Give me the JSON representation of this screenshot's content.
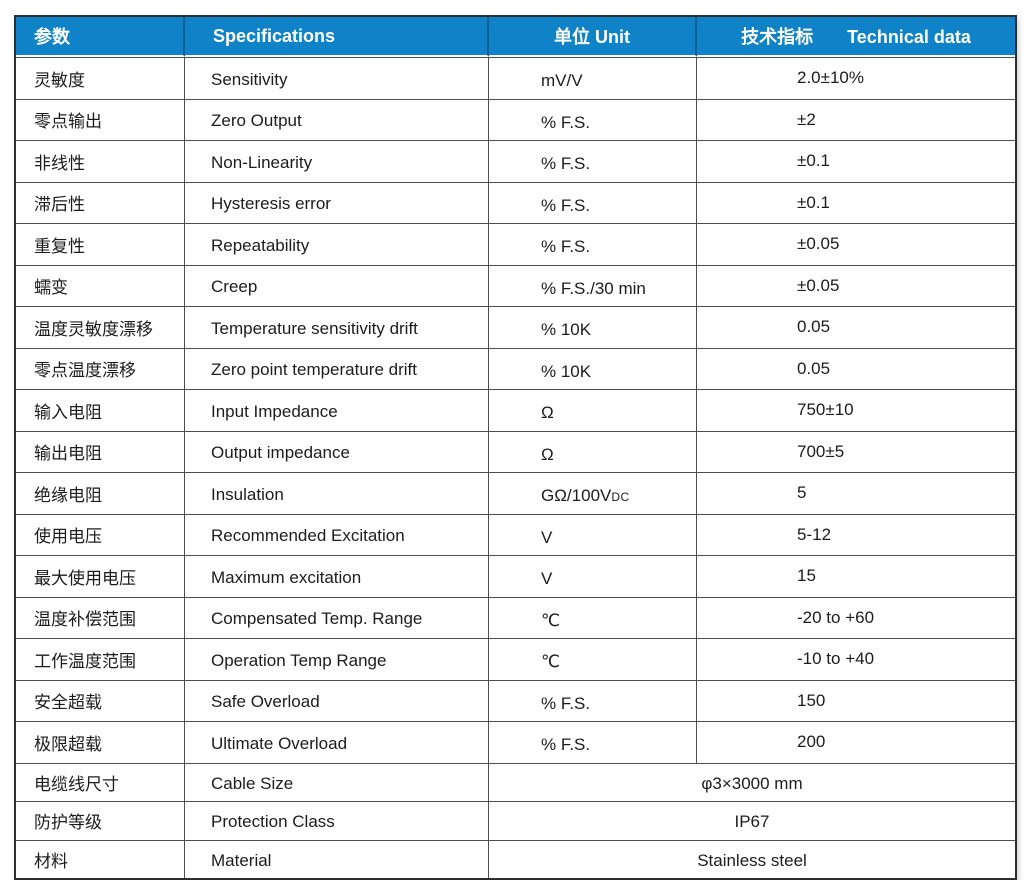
{
  "colors": {
    "header_background": "#0F82C8",
    "header_text": "#FFFFFF",
    "header_separator": "#0C5F93",
    "grid_border": "#4F4F4F",
    "body_text": "#1C1C1C",
    "page_background": "#FFFFFF"
  },
  "table": {
    "headers": {
      "col1": "参数",
      "col2": "Specifications",
      "col3": "单位 Unit",
      "col4_zh": "技术指标",
      "col4_en": "Technical data"
    },
    "rows": [
      {
        "param_zh": "灵敏度",
        "spec_en": "Sensitivity",
        "unit": "mV/V",
        "value": "2.0±10%"
      },
      {
        "param_zh": "零点输出",
        "spec_en": "Zero Output",
        "unit": "% F.S.",
        "value": "±2"
      },
      {
        "param_zh": "非线性",
        "spec_en": "Non-Linearity",
        "unit": "% F.S.",
        "value": "±0.1"
      },
      {
        "param_zh": "滞后性",
        "spec_en": "Hysteresis error",
        "unit": "% F.S.",
        "value": "±0.1"
      },
      {
        "param_zh": "重复性",
        "spec_en": "Repeatability",
        "unit": "% F.S.",
        "value": "±0.05"
      },
      {
        "param_zh": "蠕变",
        "spec_en": "Creep",
        "unit": "% F.S./30 min",
        "value": "±0.05"
      },
      {
        "param_zh": "温度灵敏度漂移",
        "spec_en": "Temperature sensitivity drift",
        "unit": "% 10K",
        "value": "0.05"
      },
      {
        "param_zh": "零点温度漂移",
        "spec_en": "Zero point temperature drift",
        "unit": "% 10K",
        "value": "0.05"
      },
      {
        "param_zh": "输入电阻",
        "spec_en": "Input Impedance",
        "unit": "Ω",
        "value": "750±10"
      },
      {
        "param_zh": "输出电阻",
        "spec_en": "Output impedance",
        "unit": "Ω",
        "value": "700±5"
      },
      {
        "param_zh": "绝缘电阻",
        "spec_en": "Insulation",
        "unit": "GΩ/100V",
        "unit_small": "DC",
        "value": "5"
      },
      {
        "param_zh": "使用电压",
        "spec_en": "Recommended Excitation",
        "unit": "V",
        "value": "5-12"
      },
      {
        "param_zh": "最大使用电压",
        "spec_en": "Maximum excitation",
        "unit": "V",
        "value": "15"
      },
      {
        "param_zh": "温度补偿范围",
        "spec_en": "Compensated Temp. Range",
        "unit": "℃",
        "value": "-20 to +60"
      },
      {
        "param_zh": "工作温度范围",
        "spec_en": "Operation Temp Range",
        "unit": "℃",
        "value": "-10 to +40"
      },
      {
        "param_zh": "安全超载",
        "spec_en": "Safe Overload",
        "unit": "% F.S.",
        "value": "150"
      },
      {
        "param_zh": "极限超载",
        "spec_en": "Ultimate Overload",
        "unit": "% F.S.",
        "value": "200"
      },
      {
        "param_zh": "电缆线尺寸",
        "spec_en": "Cable Size",
        "merged_value": "φ3×3000 mm"
      },
      {
        "param_zh": "防护等级",
        "spec_en": "Protection Class",
        "merged_value": "IP67"
      },
      {
        "param_zh": "材料",
        "spec_en": "Material",
        "merged_value": "Stainless steel"
      }
    ]
  }
}
